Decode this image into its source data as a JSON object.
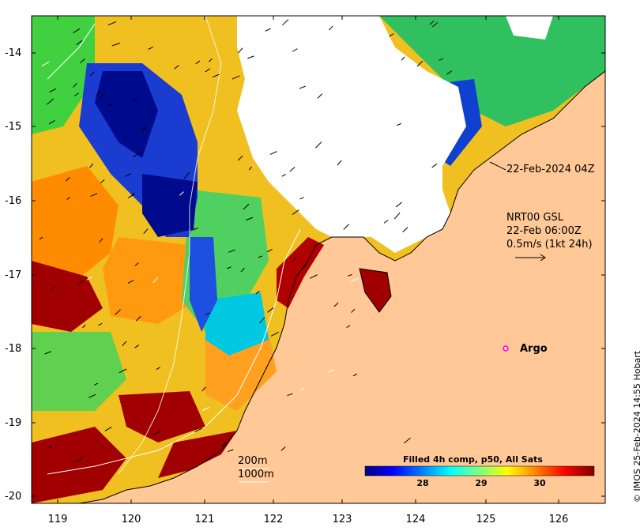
{
  "map": {
    "lon_ticks": [
      "119",
      "120",
      "121",
      "122",
      "123",
      "124",
      "125",
      "126"
    ],
    "lat_ticks": [
      "-14",
      "-15",
      "-16",
      "-17",
      "-18",
      "-19",
      "-20"
    ]
  },
  "annotations": {
    "time_label": "22-Feb-2024 04Z",
    "vector_title": "NRT00 GSL",
    "vector_time": "22-Feb 06:00Z",
    "vector_scale": "0.5m/s (1kt 24h)",
    "argo_label": "Argo",
    "isobath_200": "200m",
    "isobath_1000": "1000m"
  },
  "colorbar": {
    "title": "Filled 4h comp, p50, All Sats",
    "ticks": [
      "28",
      "29",
      "30"
    ],
    "colors": [
      "#00007f",
      "#0000ff",
      "#007fff",
      "#00ffff",
      "#7fff7f",
      "#ffff00",
      "#ff7f00",
      "#ff0000",
      "#7f0000"
    ]
  },
  "credit": "© IMOS 25-Feb-2024 14:55 Hobart",
  "colors": {
    "land": "#ffc896",
    "cloud": "#ffffff",
    "argo": "#ff00ff"
  }
}
